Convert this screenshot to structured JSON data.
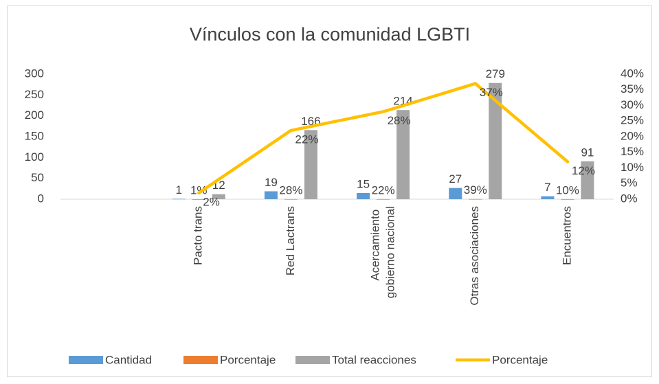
{
  "chart_data": {
    "type": "bar",
    "title": "Vínculos con la comunidad LGBTI",
    "categories": [
      null,
      "Pacto trans",
      "Red Lactrans",
      "Acercamiento gobierno nacional",
      "Otras asociaciones",
      "Encuentros"
    ],
    "series": [
      {
        "name": "Cantidad",
        "color": "#5b9bd5",
        "values": [
          null,
          1,
          19,
          15,
          27,
          7
        ]
      },
      {
        "name": "Porcentaje",
        "color": "#ed7d31",
        "values": [
          null,
          0.01,
          0.28,
          0.22,
          0.39,
          0.1
        ],
        "value_labels": [
          null,
          "1%",
          "28%",
          "22%",
          "39%",
          "10%"
        ]
      },
      {
        "name": "Total reacciones",
        "color": "#a5a5a5",
        "values": [
          null,
          12,
          166,
          214,
          279,
          91
        ]
      },
      {
        "name": "Porcentaje",
        "color": "#ffc000",
        "type": "line",
        "axis": "y2",
        "values": [
          null,
          2,
          22,
          28,
          37,
          12
        ],
        "value_labels": [
          null,
          "2%",
          "22%",
          "28%",
          "37%",
          "12%"
        ]
      }
    ],
    "ylim": [
      0,
      300
    ],
    "yticks": [
      0,
      50,
      100,
      150,
      200,
      250,
      300
    ],
    "y2lim": [
      0,
      40
    ],
    "y2ticks": [
      {
        "value": 0,
        "label": "0%"
      },
      {
        "value": 5,
        "label": "5%"
      },
      {
        "value": 10,
        "label": "10%"
      },
      {
        "value": 15,
        "label": "15%"
      },
      {
        "value": 20,
        "label": "20%"
      },
      {
        "value": 25,
        "label": "25%"
      },
      {
        "value": 30,
        "label": "30%"
      },
      {
        "value": 35,
        "label": "35%"
      },
      {
        "value": 40,
        "label": "40%"
      }
    ],
    "grid": false,
    "legend": "bottom"
  }
}
